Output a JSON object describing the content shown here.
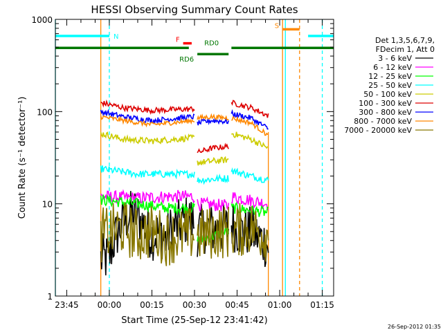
{
  "chart_data": {
    "type": "line",
    "title": "HESSI Observing Summary Count Rates",
    "xlabel": "Start Time (25-Sep-12 23:41:42)",
    "ylabel": "Count Rate (s⁻¹ detector⁻¹)",
    "yscale": "log",
    "ylim": [
      1,
      1000
    ],
    "xlim_minutes": [
      -19,
      79
    ],
    "x_ticks": [
      {
        "m": -15,
        "label": "23:45"
      },
      {
        "m": 0,
        "label": "00:00"
      },
      {
        "m": 15,
        "label": "00:15"
      },
      {
        "m": 30,
        "label": "00:30"
      },
      {
        "m": 45,
        "label": "00:45"
      },
      {
        "m": 60,
        "label": "01:00"
      },
      {
        "m": 75,
        "label": "01:15"
      }
    ],
    "y_ticks": [
      {
        "v": 1,
        "label": "1"
      },
      {
        "v": 10,
        "label": "10"
      },
      {
        "v": 100,
        "label": "100"
      },
      {
        "v": 1000,
        "label": "1000"
      }
    ],
    "legend": {
      "placement": "right",
      "header": [
        "Det 1,3,5,6,7,9,",
        "FDecim 1, Att 0"
      ],
      "entries": [
        {
          "label": "3 - 6 keV",
          "color": "#000000"
        },
        {
          "label": "6 - 12 keV",
          "color": "#ff00ff"
        },
        {
          "label": "12 - 25 keV",
          "color": "#00ff00"
        },
        {
          "label": "25 - 50 keV",
          "color": "#00ffff"
        },
        {
          "label": "50 - 100 keV",
          "color": "#cccc00"
        },
        {
          "label": "100 - 300 keV",
          "color": "#dd0000"
        },
        {
          "label": "300 - 800 keV",
          "color": "#0000ff"
        },
        {
          "label": "800 - 7000 keV",
          "color": "#ff8800"
        },
        {
          "label": "7000 - 20000 keV",
          "color": "#887700"
        }
      ]
    },
    "series": [
      {
        "name": "3 - 6 keV",
        "color": "#000000",
        "noise": 0.28,
        "segments": [
          {
            "x": [
              -3,
              0,
              1,
              3,
              6,
              9,
              12,
              15,
              18,
              20,
              22,
              25,
              28,
              30
            ],
            "y": [
              2.5,
              2.6,
              3.5,
              5,
              7,
              8,
              6,
              4.5,
              5,
              4,
              5.5,
              6,
              7,
              6
            ]
          },
          {
            "x": [
              31,
              34,
              38,
              42
            ],
            "y": [
              5,
              5.5,
              5.2,
              5.5
            ]
          },
          {
            "x": [
              43,
              46,
              50,
              54,
              56
            ],
            "y": [
              6,
              5,
              5,
              4,
              3.5
            ]
          }
        ]
      },
      {
        "name": "6 - 12 keV",
        "color": "#ff00ff",
        "noise": 0.07,
        "segments": [
          {
            "x": [
              -3,
              10,
              20,
              30
            ],
            "y": [
              12,
              11.5,
              12,
              12
            ]
          },
          {
            "x": [
              31,
              42
            ],
            "y": [
              10,
              9.5
            ]
          },
          {
            "x": [
              43,
              56
            ],
            "y": [
              12,
              10
            ]
          }
        ]
      },
      {
        "name": "12 - 25 keV",
        "color": "#00ff00",
        "noise": 0.06,
        "segments": [
          {
            "x": [
              -3,
              10,
              20,
              30
            ],
            "y": [
              11,
              10,
              9,
              9
            ]
          },
          {
            "x": [
              31,
              37,
              42
            ],
            "y": [
              4,
              4.5,
              5
            ]
          },
          {
            "x": [
              43,
              50,
              56
            ],
            "y": [
              9,
              8.5,
              8
            ]
          }
        ]
      },
      {
        "name": "25 - 50 keV",
        "color": "#00ffff",
        "noise": 0.04,
        "segments": [
          {
            "x": [
              -3,
              10,
              20,
              30
            ],
            "y": [
              24,
              21,
              21,
              21
            ]
          },
          {
            "x": [
              31,
              42
            ],
            "y": [
              18,
              19
            ]
          },
          {
            "x": [
              43,
              50,
              56
            ],
            "y": [
              23,
              20,
              18
            ]
          }
        ]
      },
      {
        "name": "50 - 100 keV",
        "color": "#cccc00",
        "noise": 0.035,
        "segments": [
          {
            "x": [
              -3,
              5,
              15,
              30
            ],
            "y": [
              58,
              50,
              48,
              52
            ]
          },
          {
            "x": [
              31,
              42
            ],
            "y": [
              28,
              30
            ]
          },
          {
            "x": [
              43,
              50,
              56
            ],
            "y": [
              58,
              50,
              40
            ]
          }
        ]
      },
      {
        "name": "100 - 300 keV",
        "color": "#dd0000",
        "noise": 0.03,
        "segments": [
          {
            "x": [
              -3,
              5,
              15,
              30
            ],
            "y": [
              125,
              110,
              103,
              107
            ]
          },
          {
            "x": [
              31,
              36,
              42
            ],
            "y": [
              36,
              40,
              42
            ]
          },
          {
            "x": [
              43,
              50,
              56
            ],
            "y": [
              125,
              110,
              90
            ]
          }
        ]
      },
      {
        "name": "300 - 800 keV",
        "color": "#0000ff",
        "noise": 0.03,
        "segments": [
          {
            "x": [
              -3,
              5,
              15,
              30
            ],
            "y": [
              100,
              88,
              80,
              88
            ]
          },
          {
            "x": [
              31,
              36,
              42
            ],
            "y": [
              75,
              80,
              78
            ]
          },
          {
            "x": [
              43,
              50,
              56
            ],
            "y": [
              95,
              85,
              65
            ]
          }
        ]
      },
      {
        "name": "800 - 7000 keV",
        "color": "#ff8800",
        "noise": 0.025,
        "segments": [
          {
            "x": [
              -3,
              5,
              15,
              30
            ],
            "y": [
              88,
              80,
              72,
              80
            ]
          },
          {
            "x": [
              31,
              36,
              42
            ],
            "y": [
              85,
              88,
              85
            ]
          },
          {
            "x": [
              43,
              50,
              56
            ],
            "y": [
              85,
              75,
              55
            ]
          }
        ]
      },
      {
        "name": "7000 - 20000 keV",
        "color": "#887700",
        "noise": 0.3,
        "segments": [
          {
            "x": [
              -3,
              0,
              5,
              10,
              15,
              20,
              25,
              30
            ],
            "y": [
              4.5,
              5,
              5.5,
              4.5,
              5,
              4.2,
              4.5,
              4.8
            ]
          },
          {
            "x": [
              31,
              38,
              42
            ],
            "y": [
              4.5,
              5,
              5
            ]
          },
          {
            "x": [
              43,
              50,
              56
            ],
            "y": [
              5,
              5.5,
              4.5
            ]
          }
        ]
      }
    ],
    "bars": [
      {
        "label": "N",
        "color": "#00ffff",
        "y": 660,
        "x0": -19,
        "x1": 0,
        "label_side": "right"
      },
      {
        "label": "",
        "color": "#00ffff",
        "y": 660,
        "x0": 70,
        "x1": 79
      },
      {
        "label": "F",
        "color": "#ff0000",
        "y": 550,
        "x0": 26,
        "x1": 29,
        "label_side": "left"
      },
      {
        "label": "RD0",
        "color": "#007700",
        "y": 490,
        "x0": -19,
        "x1": 28,
        "label_side": "none"
      },
      {
        "label": "",
        "color": "#007700",
        "y": 490,
        "x0": 43,
        "x1": 79
      },
      {
        "label": "RD6",
        "color": "#007700",
        "y": 420,
        "x0": 31,
        "x1": 42,
        "label_side": "left"
      },
      {
        "label": "S",
        "color": "#ff8800",
        "y": 780,
        "x0": 61,
        "x1": 67,
        "label_side": "left"
      }
    ],
    "bar_labels_extra": [
      {
        "text": "RD0",
        "color": "#007700",
        "x": 36,
        "y": 490
      }
    ],
    "vlines": [
      {
        "x": -19,
        "color": "#00ffff",
        "style": "solid"
      },
      {
        "x": 0,
        "color": "#00ffff",
        "style": "dashed"
      },
      {
        "x": 75,
        "color": "#00ffff",
        "style": "dashed"
      },
      {
        "x": 62,
        "color": "#00ffff",
        "style": "solid"
      },
      {
        "x": -3,
        "color": "#ff8800",
        "style": "solid"
      },
      {
        "x": 61,
        "color": "#ff8800",
        "style": "solid"
      },
      {
        "x": 67,
        "color": "#ff8800",
        "style": "dashed"
      },
      {
        "x": 56,
        "color": "#ff8800",
        "style": "solid_partial"
      }
    ],
    "footer_stamp": "26-Sep-2012 01:35"
  }
}
